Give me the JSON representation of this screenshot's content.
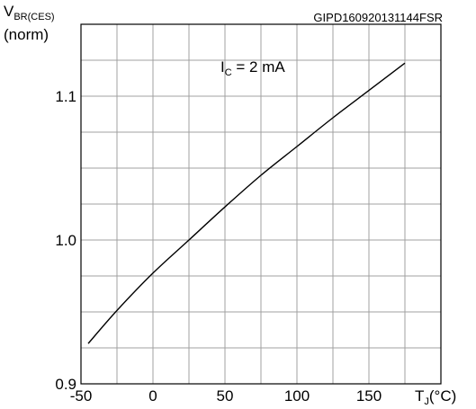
{
  "chart_data": {
    "type": "line",
    "code": "GIPD160920131144FSR",
    "ylabel": {
      "main": "V",
      "sub": "BR(CES)",
      "unit": "(norm)"
    },
    "xlabel": {
      "main": "T",
      "sub": "J",
      "unit": "(°C)"
    },
    "annotation": {
      "main": "I",
      "sub": "C",
      "rest": " = 2 mA"
    },
    "xlim": [
      -50,
      200
    ],
    "ylim": [
      0.9,
      1.15
    ],
    "x_grid_step": 25,
    "y_grid_step": 0.025,
    "grid": true,
    "x_ticks": [
      -50,
      0,
      50,
      100,
      150
    ],
    "x_tick_labels": [
      "-50",
      "0",
      "50",
      "100",
      "150"
    ],
    "y_ticks": [
      0.9,
      1.0,
      1.1
    ],
    "y_tick_labels": [
      "0.9",
      "1.0",
      "1.1"
    ],
    "series": [
      {
        "color": "#000000",
        "x": [
          -45,
          -25,
          0,
          25,
          50,
          75,
          100,
          125,
          150,
          175
        ],
        "y": [
          0.928,
          0.951,
          0.977,
          1.0,
          1.023,
          1.045,
          1.065,
          1.085,
          1.104,
          1.123
        ]
      }
    ]
  }
}
